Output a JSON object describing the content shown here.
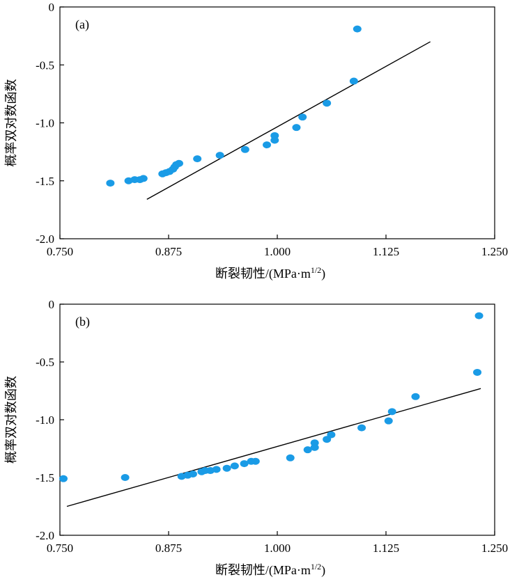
{
  "chart_data": [
    {
      "type": "scatter",
      "panel_label": "(a)",
      "xlabel": "断裂韧性/(MPa·m",
      "xlabel_sup": "1/2",
      "xlabel_end": ")",
      "ylabel": "概率双对数函数",
      "xlim": [
        0.75,
        1.25
      ],
      "ylim": [
        -2.0,
        0
      ],
      "xticks": [
        "0.750",
        "0.875",
        "1.000",
        "1.125",
        "1.250"
      ],
      "xtick_values": [
        0.75,
        0.875,
        1.0,
        1.125,
        1.25
      ],
      "yticks": [
        "0",
        "-0.5",
        "-1.0",
        "-1.5",
        "-2.0"
      ],
      "ytick_values": [
        0,
        -0.5,
        -1.0,
        -1.5,
        -2.0
      ],
      "grid": false,
      "point_color": "#1a9be6",
      "line_color": "#000000",
      "points": [
        {
          "x": 0.808,
          "y": -1.52
        },
        {
          "x": 0.829,
          "y": -1.5
        },
        {
          "x": 0.836,
          "y": -1.49
        },
        {
          "x": 0.842,
          "y": -1.49
        },
        {
          "x": 0.846,
          "y": -1.48
        },
        {
          "x": 0.868,
          "y": -1.44
        },
        {
          "x": 0.872,
          "y": -1.43
        },
        {
          "x": 0.876,
          "y": -1.42
        },
        {
          "x": 0.88,
          "y": -1.4
        },
        {
          "x": 0.882,
          "y": -1.38
        },
        {
          "x": 0.884,
          "y": -1.36
        },
        {
          "x": 0.887,
          "y": -1.35
        },
        {
          "x": 0.908,
          "y": -1.31
        },
        {
          "x": 0.934,
          "y": -1.28
        },
        {
          "x": 0.963,
          "y": -1.23
        },
        {
          "x": 0.988,
          "y": -1.19
        },
        {
          "x": 0.997,
          "y": -1.15
        },
        {
          "x": 0.997,
          "y": -1.11
        },
        {
          "x": 1.022,
          "y": -1.04
        },
        {
          "x": 1.029,
          "y": -0.95
        },
        {
          "x": 1.057,
          "y": -0.83
        },
        {
          "x": 1.088,
          "y": -0.64
        },
        {
          "x": 1.092,
          "y": -0.19
        }
      ],
      "fit_line": [
        {
          "x": 0.85,
          "y": -1.66
        },
        {
          "x": 1.176,
          "y": -0.3
        }
      ]
    },
    {
      "type": "scatter",
      "panel_label": "(b)",
      "xlabel": "断裂韧性/(MPa·m",
      "xlabel_sup": "1/2",
      "xlabel_end": ")",
      "ylabel": "概率双对数函数",
      "xlim": [
        0.75,
        1.25
      ],
      "ylim": [
        -2.0,
        0
      ],
      "xticks": [
        "0.750",
        "0.875",
        "1.000",
        "1.125",
        "1.250"
      ],
      "xtick_values": [
        0.75,
        0.875,
        1.0,
        1.125,
        1.25
      ],
      "yticks": [
        "0",
        "-0.5",
        "-1.0",
        "-1.5",
        "-2.0"
      ],
      "ytick_values": [
        0,
        -0.5,
        -1.0,
        -1.5,
        -2.0
      ],
      "grid": false,
      "point_color": "#1a9be6",
      "line_color": "#000000",
      "points": [
        {
          "x": 0.754,
          "y": -1.51
        },
        {
          "x": 0.825,
          "y": -1.5
        },
        {
          "x": 0.89,
          "y": -1.49
        },
        {
          "x": 0.897,
          "y": -1.48
        },
        {
          "x": 0.903,
          "y": -1.47
        },
        {
          "x": 0.913,
          "y": -1.45
        },
        {
          "x": 0.917,
          "y": -1.44
        },
        {
          "x": 0.923,
          "y": -1.44
        },
        {
          "x": 0.93,
          "y": -1.43
        },
        {
          "x": 0.942,
          "y": -1.42
        },
        {
          "x": 0.951,
          "y": -1.4
        },
        {
          "x": 0.962,
          "y": -1.38
        },
        {
          "x": 0.97,
          "y": -1.36
        },
        {
          "x": 0.975,
          "y": -1.36
        },
        {
          "x": 1.015,
          "y": -1.33
        },
        {
          "x": 1.035,
          "y": -1.26
        },
        {
          "x": 1.043,
          "y": -1.24
        },
        {
          "x": 1.043,
          "y": -1.2
        },
        {
          "x": 1.057,
          "y": -1.17
        },
        {
          "x": 1.062,
          "y": -1.13
        },
        {
          "x": 1.097,
          "y": -1.07
        },
        {
          "x": 1.128,
          "y": -1.01
        },
        {
          "x": 1.132,
          "y": -0.93
        },
        {
          "x": 1.159,
          "y": -0.8
        },
        {
          "x": 1.23,
          "y": -0.59
        },
        {
          "x": 1.232,
          "y": -0.1
        }
      ],
      "fit_line": [
        {
          "x": 0.758,
          "y": -1.75
        },
        {
          "x": 1.234,
          "y": -0.73
        }
      ]
    }
  ]
}
